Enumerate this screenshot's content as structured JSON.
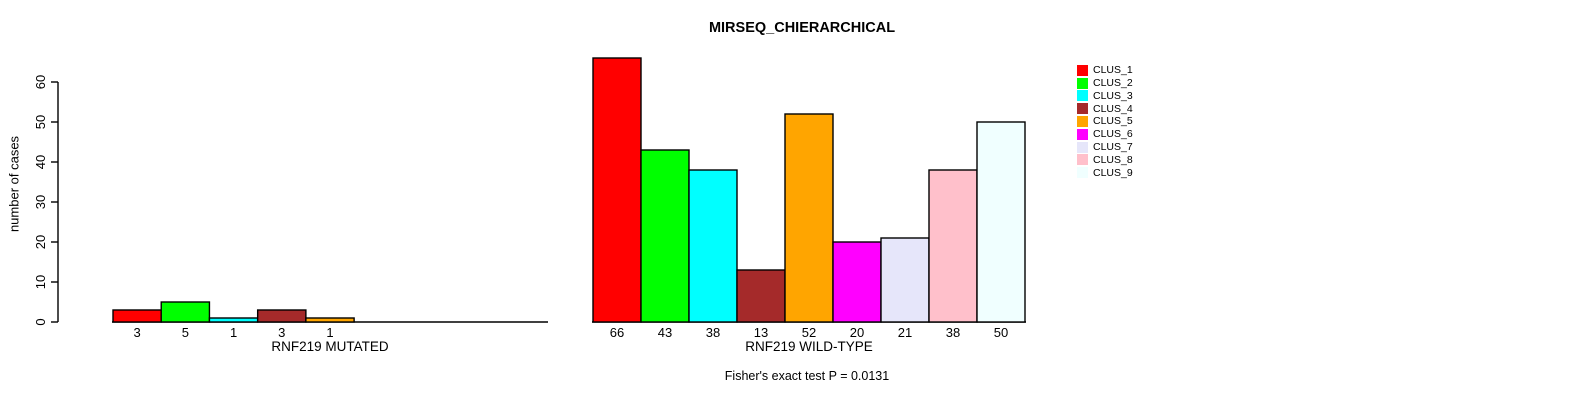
{
  "chart_data": {
    "type": "bar",
    "title": "MIRSEQ_CHIERARCHICAL",
    "ylabel": "number of cases",
    "ylim": [
      0,
      60
    ],
    "yticks": [
      0,
      10,
      20,
      30,
      40,
      50,
      60
    ],
    "grid": false,
    "legend": {
      "position": "right",
      "entries": [
        {
          "label": "CLUS_1",
          "color": "#FF0000"
        },
        {
          "label": "CLUS_2",
          "color": "#00FF00"
        },
        {
          "label": "CLUS_3",
          "color": "#00FFFF"
        },
        {
          "label": "CLUS_4",
          "color": "#A52A2A"
        },
        {
          "label": "CLUS_5",
          "color": "#FFA500"
        },
        {
          "label": "CLUS_6",
          "color": "#FF00FF"
        },
        {
          "label": "CLUS_7",
          "color": "#E6E6FA"
        },
        {
          "label": "CLUS_8",
          "color": "#FFC0CB"
        },
        {
          "label": "CLUS_9",
          "color": "#F0FFFF"
        }
      ]
    },
    "panels": [
      {
        "xlabel": "RNF219 MUTATED",
        "categories": [
          "CLUS_1",
          "CLUS_2",
          "CLUS_3",
          "CLUS_4",
          "CLUS_5"
        ],
        "values": [
          3,
          5,
          1,
          3,
          1
        ],
        "bar_labels": [
          "3",
          "5",
          "1",
          "3",
          "1"
        ]
      },
      {
        "xlabel": "RNF219 WILD-TYPE",
        "categories": [
          "CLUS_1",
          "CLUS_2",
          "CLUS_3",
          "CLUS_4",
          "CLUS_5",
          "CLUS_6",
          "CLUS_7",
          "CLUS_8",
          "CLUS_9"
        ],
        "values": [
          66,
          43,
          38,
          13,
          52,
          20,
          21,
          38,
          50
        ],
        "bar_labels": [
          "66",
          "43",
          "38",
          "13",
          "52",
          "20",
          "21",
          "38",
          "50"
        ]
      }
    ],
    "annotation": "Fisher's exact test P = 0.0131"
  }
}
